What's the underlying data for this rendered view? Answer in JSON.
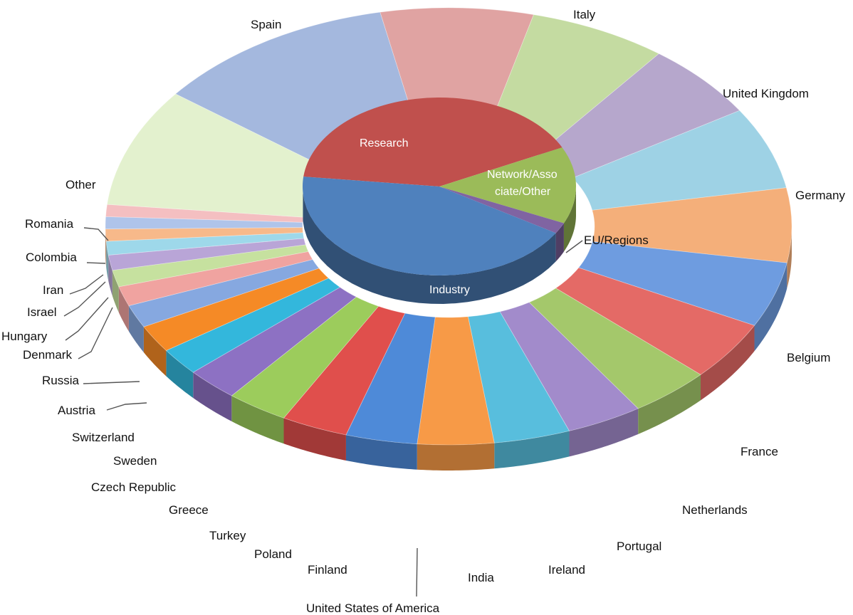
{
  "chart_data": [
    {
      "type": "pie",
      "ring": "outer",
      "labels": [
        "Spain",
        "Italy",
        "United Kingdom",
        "Germany",
        "Belgium",
        "France",
        "Netherlands",
        "Portugal",
        "Ireland",
        "India",
        "United States of America",
        "Finland",
        "Poland",
        "Turkey",
        "Greece",
        "Czech Republic",
        "Sweden",
        "Switzerland",
        "Austria",
        "Russia",
        "Denmark",
        "Hungary",
        "Israel",
        "Iran",
        "Colombia",
        "Romania",
        "Other"
      ],
      "values": [
        10.2,
        6.4,
        5.8,
        5.0,
        5.4,
        4.9,
        4.3,
        3.9,
        3.4,
        3.2,
        3.2,
        3.2,
        3.0,
        2.8,
        2.6,
        2.2,
        1.8,
        1.8,
        1.5,
        1.3,
        1.1,
        1.0,
        0.9,
        0.8,
        0.8,
        0.8,
        7.8
      ],
      "colors": [
        "#A4B8DE",
        "#E0A3A2",
        "#C4DBA1",
        "#B6A7CC",
        "#9ED2E5",
        "#F4AF7A",
        "#6E9CE0",
        "#E46A66",
        "#A4C86B",
        "#A28BCB",
        "#58BEDD",
        "#F79A47",
        "#4E8AD8",
        "#E04F4C",
        "#9CCC5C",
        "#8D71C3",
        "#33B7DC",
        "#F58A26",
        "#86A8E0",
        "#F0A3A0",
        "#C6E19F",
        "#B9A5D7",
        "#9ED8EA",
        "#F7B98A",
        "#AFC4EA",
        "#F4BFC1",
        "#E3F1CE"
      ]
    },
    {
      "type": "pie",
      "ring": "inner",
      "labels": [
        "Research",
        "Network/Associate/Other",
        "EU/Regions",
        "Industry"
      ],
      "display_labels": [
        "Research",
        "Network/Asso",
        "ciate/Other",
        "EU/Regions",
        "Industry"
      ],
      "values": [
        41,
        14,
        2,
        43
      ],
      "colors": [
        "#C0504D",
        "#9BBB59",
        "#8064A2",
        "#4F81BD"
      ]
    }
  ]
}
